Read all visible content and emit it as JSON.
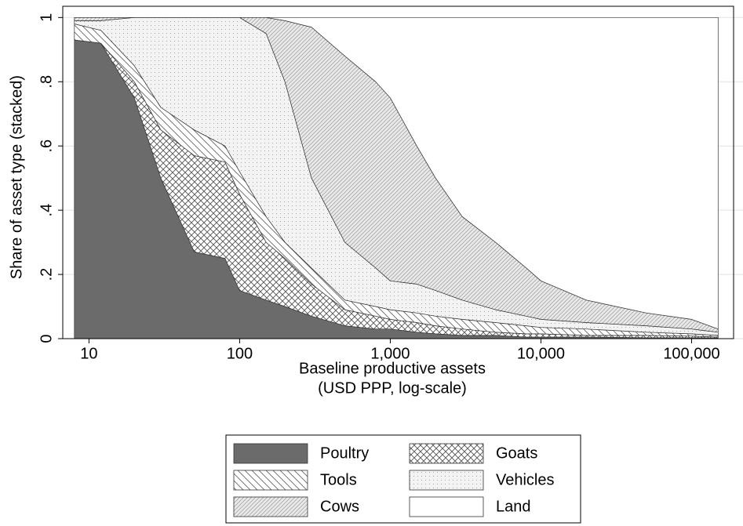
{
  "chart_data": {
    "type": "stacked-area",
    "x_label": [
      "Baseline productive assets",
      "(USD PPP, log-scale)"
    ],
    "y_label": "Share of asset type (stacked)",
    "x": [
      8,
      12,
      20,
      30,
      50,
      80,
      100,
      150,
      200,
      300,
      500,
      800,
      1000,
      1500,
      2000,
      3000,
      5000,
      8000,
      10000,
      20000,
      50000,
      100000,
      150000
    ],
    "series": [
      {
        "name": "Poultry",
        "color": "#6b6b6b",
        "pattern": "solid",
        "values": [
          0.93,
          0.92,
          0.75,
          0.5,
          0.27,
          0.25,
          0.15,
          0.12,
          0.1,
          0.07,
          0.04,
          0.03,
          0.03,
          0.02,
          0.015,
          0.01,
          0.01,
          0.005,
          0.005,
          0.005,
          0.003,
          0.003,
          0.002
        ]
      },
      {
        "name": "Goats",
        "color": "#555555",
        "pattern": "crosshatch",
        "values": [
          0,
          0,
          0.05,
          0.15,
          0.3,
          0.3,
          0.3,
          0.18,
          0.15,
          0.1,
          0.05,
          0.04,
          0.03,
          0.03,
          0.025,
          0.02,
          0.01,
          0.01,
          0.01,
          0.005,
          0.007,
          0.005,
          0.003
        ]
      },
      {
        "name": "Tools",
        "color": "#666666",
        "pattern": "backhatch",
        "values": [
          0.05,
          0.04,
          0.05,
          0.07,
          0.08,
          0.05,
          0.07,
          0.08,
          0.05,
          0.05,
          0.03,
          0.03,
          0.03,
          0.03,
          0.03,
          0.03,
          0.03,
          0.025,
          0.02,
          0.02,
          0.01,
          0.007,
          0.005
        ]
      },
      {
        "name": "Vehicles",
        "color": "#888888",
        "pattern": "dots",
        "values": [
          0.01,
          0.03,
          0.15,
          0.28,
          0.35,
          0.4,
          0.48,
          0.57,
          0.5,
          0.28,
          0.18,
          0.12,
          0.09,
          0.09,
          0.08,
          0.06,
          0.04,
          0.03,
          0.025,
          0.02,
          0.02,
          0.015,
          0.01
        ]
      },
      {
        "name": "Cows",
        "color": "#999999",
        "pattern": "hatch",
        "values": [
          0.01,
          0.01,
          0,
          0,
          0,
          0,
          0,
          0.05,
          0.19,
          0.47,
          0.58,
          0.58,
          0.57,
          0.43,
          0.35,
          0.26,
          0.21,
          0.15,
          0.12,
          0.07,
          0.04,
          0.03,
          0.01
        ]
      },
      {
        "name": "Land",
        "color": "#ffffff",
        "pattern": "solid",
        "values": [
          0,
          0,
          0,
          0,
          0,
          0,
          0,
          0,
          0.01,
          0.03,
          0.12,
          0.2,
          0.25,
          0.4,
          0.5,
          0.62,
          0.7,
          0.78,
          0.82,
          0.88,
          0.92,
          0.94,
          0.97
        ]
      }
    ],
    "xscale": "log",
    "xlim": [
      6.7,
      190000
    ],
    "xticks": [
      10,
      100,
      {
        "value": 1000,
        "label": "1,000"
      },
      {
        "value": 10000,
        "label": "10,000"
      },
      {
        "value": 100000,
        "label": "100,000"
      }
    ],
    "ylim": [
      0,
      1.035
    ],
    "yticks": [
      0,
      {
        "value": 0.2,
        "label": ".2"
      },
      {
        "value": 0.4,
        "label": ".4"
      },
      {
        "value": 0.6,
        "label": ".6"
      },
      {
        "value": 0.8,
        "label": ".8"
      },
      1
    ],
    "grid": true,
    "legend": "bottom"
  }
}
